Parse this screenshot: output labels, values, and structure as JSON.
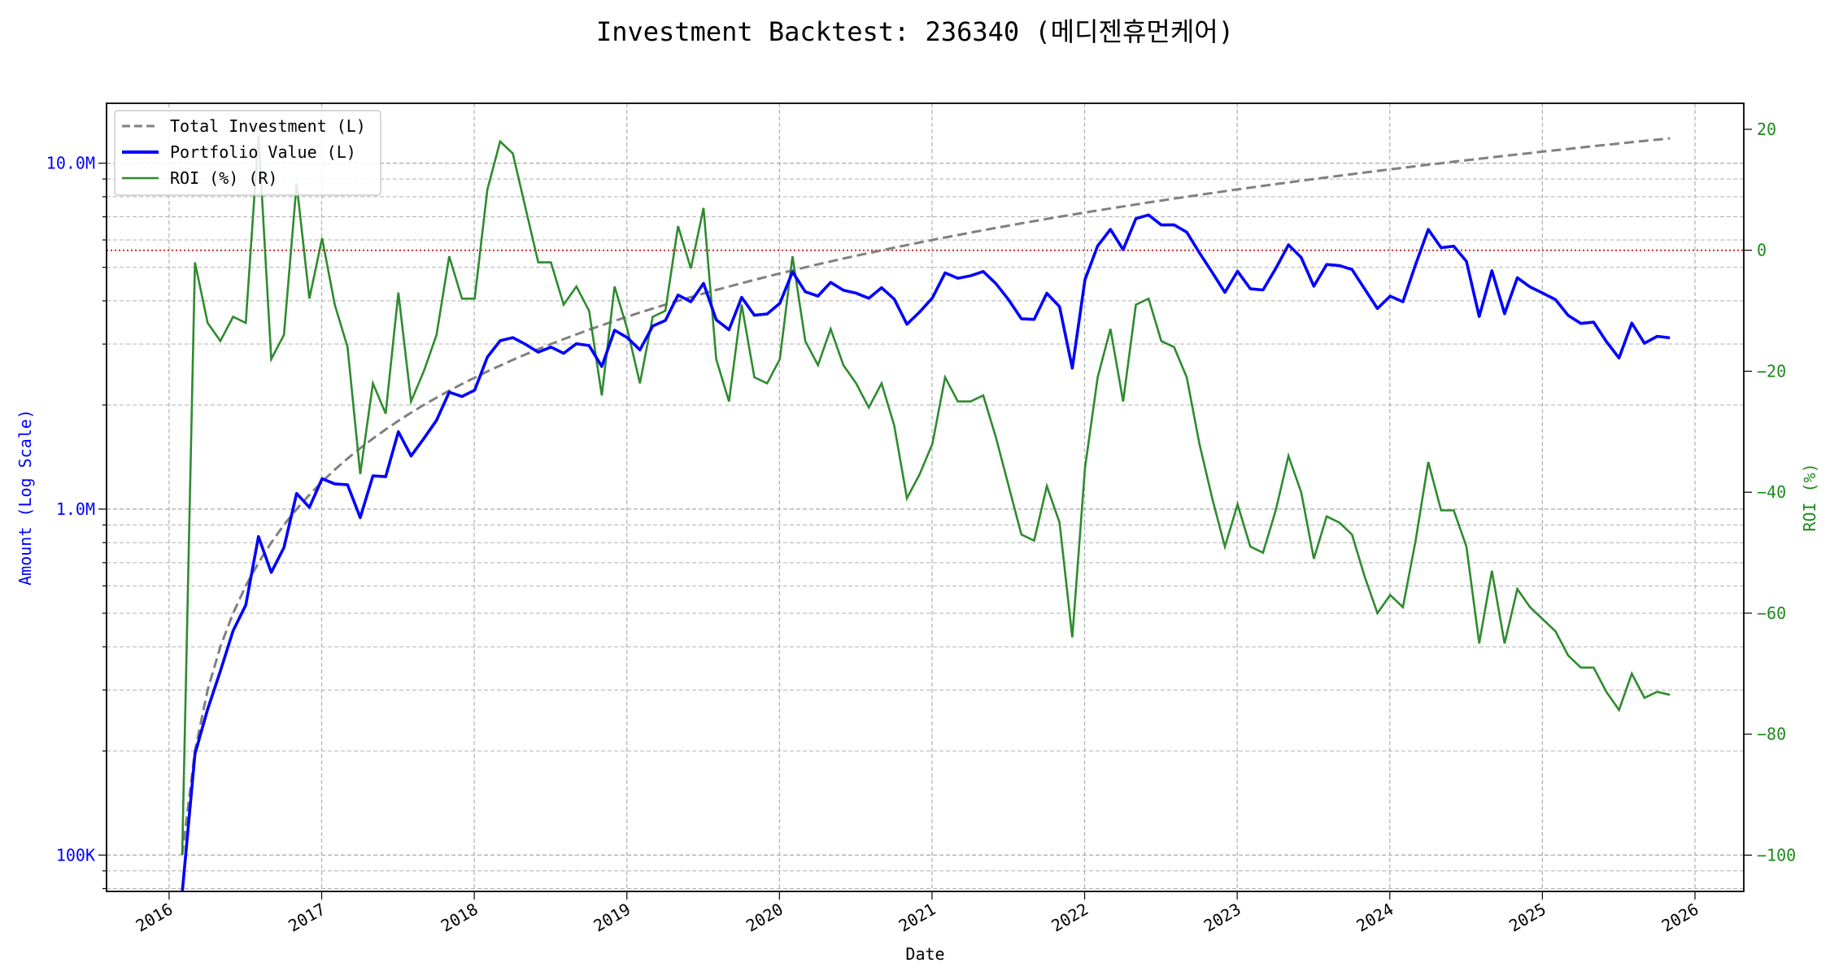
{
  "chart_data": {
    "type": "line",
    "title": "Investment Backtest: 236340 (메디젠휴먼케어)",
    "xlabel": "Date",
    "ylabel_left": "Amount (Log Scale)",
    "ylabel_right": "ROI (%)",
    "x_start": "2016-02",
    "x_frequency": "monthly",
    "xlim_years": [
      2015.59,
      2026.32
    ],
    "x_ticks": [
      "2016",
      "2017",
      "2018",
      "2019",
      "2020",
      "2021",
      "2022",
      "2023",
      "2024",
      "2025",
      "2026"
    ],
    "y_left_scale": "log",
    "y_left_lim": [
      78500,
      14900000
    ],
    "y_left_ticks": [
      {
        "value": 100000,
        "label": "100K"
      },
      {
        "value": 1000000,
        "label": "1.0M"
      },
      {
        "value": 10000000,
        "label": "10.0M"
      }
    ],
    "y_right_lim": [
      -106,
      24.3
    ],
    "y_right_ticks": [
      {
        "value": -100,
        "label": "−100"
      },
      {
        "value": -80,
        "label": "−80"
      },
      {
        "value": -60,
        "label": "−60"
      },
      {
        "value": -40,
        "label": "−40"
      },
      {
        "value": -20,
        "label": "−20"
      },
      {
        "value": 0,
        "label": "0"
      },
      {
        "value": 20,
        "label": "20"
      }
    ],
    "reference_line": {
      "axis": "right",
      "value": 0,
      "color": "#cc0000",
      "style": "dotted"
    },
    "grid": true,
    "legend_position": "top-left",
    "monthly_investment": 100000,
    "series": [
      {
        "name": "Total Investment (L)",
        "axis": "left",
        "color": "#808080",
        "style": "dashed",
        "derived": "cumulative monthly_investment"
      },
      {
        "name": "Portfolio Value (L)",
        "axis": "left",
        "color": "#0000ff",
        "style": "solid",
        "derived": "total_investment * (1 + roi/100)"
      },
      {
        "name": "ROI (%) (R)",
        "axis": "right",
        "color": "#2e8b2e",
        "style": "solid",
        "values": [
          -100,
          -2,
          -12,
          -15,
          -11,
          -12,
          19,
          -18,
          -14,
          11,
          -8,
          2,
          -9,
          -16,
          -37,
          -22,
          -27,
          -7,
          -25,
          -20,
          -14,
          -1,
          -8,
          -8,
          10,
          18,
          16,
          7,
          -2,
          -2,
          -9,
          -6,
          -10,
          -24,
          -6,
          -13,
          -22,
          -11,
          -10,
          4,
          -3,
          7,
          -18,
          -25,
          -9,
          -21,
          -22,
          -18,
          -1,
          -15,
          -19,
          -13,
          -19,
          -22,
          -26,
          -22,
          -29,
          -41,
          -37,
          -32,
          -21,
          -25,
          -25,
          -24,
          -31,
          -39,
          -47,
          -48,
          -39,
          -45,
          -64,
          -36,
          -21,
          -13,
          -25,
          -9,
          -8,
          -15,
          -16,
          -21,
          -32,
          -41,
          -49,
          -42,
          -49,
          -50,
          -43,
          -34,
          -40,
          -51,
          -44,
          -45,
          -47,
          -54,
          -60,
          -57,
          -59,
          -48,
          -35,
          -43,
          -43,
          -49,
          -65,
          -53,
          -65,
          -56,
          -59,
          -61,
          -63,
          -67,
          -69,
          -69,
          -73,
          -76,
          -70,
          -74,
          -73,
          -73.5
        ]
      }
    ]
  }
}
